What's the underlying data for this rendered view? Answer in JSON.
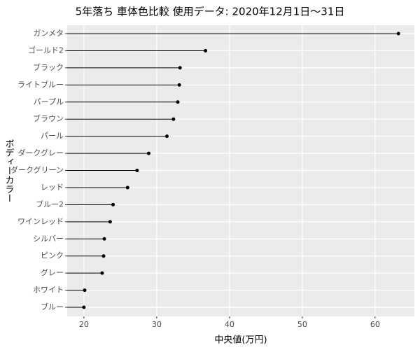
{
  "chart_data": {
    "type": "lollipop",
    "title": "5年落ち 車体色比較 使用データ: 2020年12月1日～31日",
    "x_label": "中央値(万円)",
    "y_label": "ボディーカラー",
    "categories": [
      "ガンメタ",
      "ゴールド2",
      "ブラック",
      "ライトブルー",
      "パープル",
      "ブラウン",
      "パール",
      "ダークグレー",
      "ダークグリーン",
      "レッド",
      "ブルー2",
      "ワインレッド",
      "シルバー",
      "ピンク",
      "グレー",
      "ホワイト",
      "ブルー"
    ],
    "values": [
      63.2,
      36.7,
      33.2,
      33.1,
      32.9,
      32.3,
      31.4,
      28.9,
      27.3,
      26.0,
      24.0,
      23.6,
      22.8,
      22.7,
      22.5,
      20.1,
      20.0
    ],
    "color": "#000000",
    "xlim": [
      17.7,
      65.4
    ],
    "xticks": [
      20,
      30,
      40,
      50,
      60
    ],
    "grid": true
  }
}
